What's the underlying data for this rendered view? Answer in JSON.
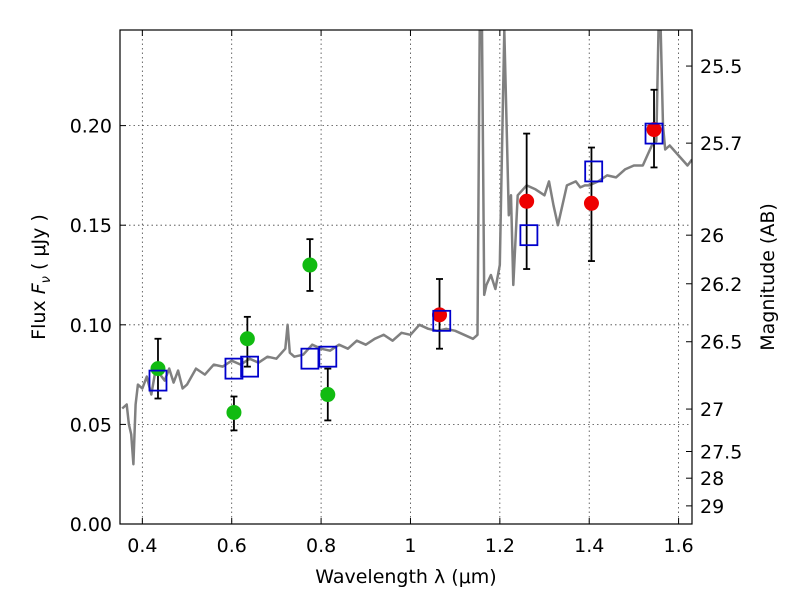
{
  "chart_data": {
    "type": "scatter",
    "xlabel": "Wavelength  λ (μm)",
    "ylabel": "Flux  F_ν  ( μJy )",
    "ylabel_parts": {
      "prefix": "Flux  ",
      "symbol": "F",
      "subscript": "ν",
      "units": "  ( μJy )"
    },
    "y2label": "Magnitude (AB)",
    "xlim": [
      0.35,
      1.63
    ],
    "ylim": [
      0.0,
      0.248
    ],
    "grid": true,
    "xticks": [
      0.4,
      0.6,
      0.8,
      1.0,
      1.2,
      1.4,
      1.6
    ],
    "xtick_labels": [
      "0.4",
      "0.6",
      "0.8",
      "1",
      "1.2",
      "1.4",
      "1.6"
    ],
    "yticks": [
      0.0,
      0.05,
      0.1,
      0.15,
      0.2
    ],
    "ytick_labels": [
      "0.00",
      "0.05",
      "0.10",
      "0.15",
      "0.20"
    ],
    "right_ticks": [
      {
        "label": "25.5",
        "flux": 0.2299
      },
      {
        "label": "25.7",
        "flux": 0.1912
      },
      {
        "label": "26",
        "flux": 0.145
      },
      {
        "label": "26.2",
        "flux": 0.1206
      },
      {
        "label": "26.5",
        "flux": 0.0915
      },
      {
        "label": "27",
        "flux": 0.0577
      },
      {
        "label": "27.5",
        "flux": 0.0364
      },
      {
        "label": "28",
        "flux": 0.023
      },
      {
        "label": "29",
        "flux": 0.0091
      }
    ],
    "colors": {
      "model": "#808080",
      "green": "#11bb11",
      "red": "#ee0000",
      "square": "#0000cc",
      "error": "#000000",
      "grid": "#444444"
    },
    "model_spectrum": {
      "x": [
        0.355,
        0.365,
        0.37,
        0.375,
        0.38,
        0.385,
        0.39,
        0.4,
        0.41,
        0.42,
        0.43,
        0.44,
        0.45,
        0.46,
        0.47,
        0.48,
        0.49,
        0.5,
        0.52,
        0.54,
        0.56,
        0.58,
        0.6,
        0.62,
        0.64,
        0.66,
        0.68,
        0.7,
        0.72,
        0.725,
        0.73,
        0.74,
        0.76,
        0.78,
        0.8,
        0.82,
        0.84,
        0.86,
        0.88,
        0.9,
        0.92,
        0.94,
        0.96,
        0.98,
        1.0,
        1.02,
        1.04,
        1.06,
        1.08,
        1.1,
        1.12,
        1.14,
        1.15,
        1.155,
        1.16,
        1.165,
        1.17,
        1.18,
        1.19,
        1.2,
        1.21,
        1.22,
        1.225,
        1.23,
        1.24,
        1.26,
        1.28,
        1.3,
        1.31,
        1.32,
        1.33,
        1.35,
        1.37,
        1.38,
        1.39,
        1.4,
        1.42,
        1.44,
        1.46,
        1.48,
        1.5,
        1.52,
        1.54,
        1.55,
        1.555,
        1.56,
        1.565,
        1.57,
        1.58,
        1.6,
        1.62,
        1.63
      ],
      "y": [
        0.058,
        0.06,
        0.05,
        0.045,
        0.03,
        0.06,
        0.07,
        0.068,
        0.074,
        0.065,
        0.078,
        0.075,
        0.072,
        0.078,
        0.071,
        0.077,
        0.068,
        0.07,
        0.078,
        0.075,
        0.08,
        0.079,
        0.082,
        0.08,
        0.083,
        0.081,
        0.084,
        0.083,
        0.088,
        0.1,
        0.086,
        0.084,
        0.085,
        0.09,
        0.088,
        0.087,
        0.09,
        0.088,
        0.092,
        0.09,
        0.093,
        0.095,
        0.092,
        0.096,
        0.095,
        0.1,
        0.098,
        0.097,
        0.098,
        0.097,
        0.095,
        0.093,
        0.095,
        0.248,
        0.248,
        0.115,
        0.12,
        0.125,
        0.118,
        0.13,
        0.248,
        0.155,
        0.165,
        0.12,
        0.165,
        0.17,
        0.168,
        0.165,
        0.172,
        0.16,
        0.15,
        0.17,
        0.172,
        0.169,
        0.17,
        0.17,
        0.172,
        0.175,
        0.174,
        0.178,
        0.18,
        0.18,
        0.19,
        0.192,
        0.248,
        0.248,
        0.2,
        0.188,
        0.19,
        0.185,
        0.18,
        0.183
      ]
    },
    "green_points": [
      {
        "x": 0.435,
        "y": 0.078,
        "err": [
          0.063,
          0.093
        ]
      },
      {
        "x": 0.605,
        "y": 0.056,
        "err": [
          0.047,
          0.064
        ]
      },
      {
        "x": 0.635,
        "y": 0.093,
        "err": [
          0.079,
          0.104
        ]
      },
      {
        "x": 0.775,
        "y": 0.13,
        "err": [
          0.117,
          0.143
        ]
      },
      {
        "x": 0.815,
        "y": 0.065,
        "err": [
          0.052,
          0.078
        ]
      }
    ],
    "red_points": [
      {
        "x": 1.065,
        "y": 0.105,
        "err": [
          0.088,
          0.123
        ]
      },
      {
        "x": 1.26,
        "y": 0.162,
        "err": [
          0.128,
          0.196
        ]
      },
      {
        "x": 1.405,
        "y": 0.161,
        "err": [
          0.132,
          0.189
        ]
      },
      {
        "x": 1.545,
        "y": 0.198,
        "err": [
          0.179,
          0.218
        ]
      }
    ],
    "model_squares": [
      {
        "x": 0.435,
        "y": 0.072
      },
      {
        "x": 0.605,
        "y": 0.078
      },
      {
        "x": 0.64,
        "y": 0.079
      },
      {
        "x": 0.775,
        "y": 0.083
      },
      {
        "x": 0.815,
        "y": 0.084
      },
      {
        "x": 1.07,
        "y": 0.102
      },
      {
        "x": 1.265,
        "y": 0.145
      },
      {
        "x": 1.41,
        "y": 0.177
      },
      {
        "x": 1.545,
        "y": 0.196
      }
    ]
  }
}
